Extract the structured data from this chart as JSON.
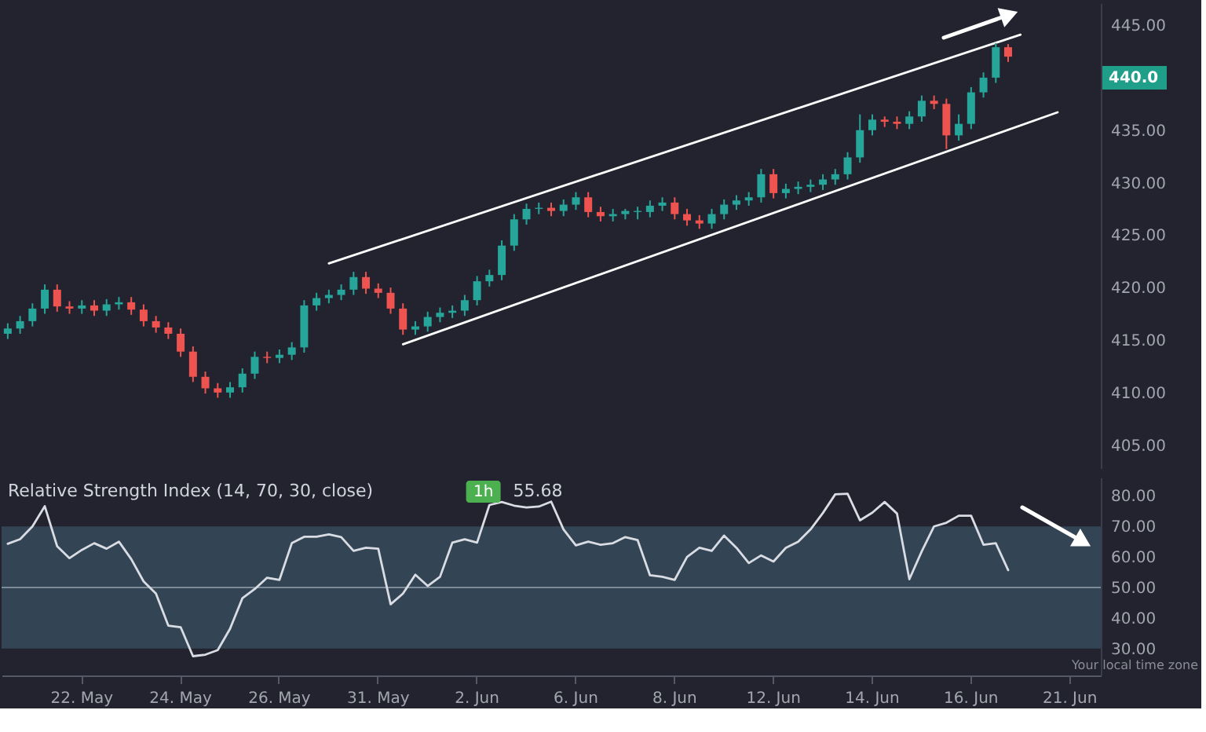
{
  "chart_data": [
    {
      "type": "candlestick",
      "categories": [
        null,
        null,
        null,
        null,
        null,
        null,
        null,
        null,
        null,
        null,
        null,
        null,
        null,
        null,
        null,
        null,
        null,
        null,
        null,
        null,
        null,
        null,
        null,
        null,
        null,
        null,
        null,
        null,
        null,
        null,
        null,
        null,
        null,
        null,
        null,
        null,
        null,
        null,
        null,
        null,
        null,
        null,
        null,
        null,
        null,
        null,
        null,
        null,
        null,
        null,
        null,
        null,
        null,
        null,
        null,
        null,
        null,
        null,
        null,
        null,
        null,
        null,
        null,
        null,
        null,
        null,
        null,
        null,
        null,
        null,
        null,
        null,
        null,
        null,
        null,
        null,
        null,
        null,
        null,
        null,
        null,
        null,
        null,
        null,
        null,
        null,
        null,
        null,
        null
      ],
      "ohlc": [
        [
          415.6,
          416.6,
          415.1,
          416.1
        ],
        [
          416.1,
          417.3,
          415.6,
          416.8
        ],
        [
          416.8,
          418.5,
          416.3,
          418.0
        ],
        [
          418.0,
          420.3,
          417.5,
          419.8
        ],
        [
          419.8,
          420.3,
          417.7,
          418.2
        ],
        [
          418.2,
          418.7,
          417.5,
          418.0
        ],
        [
          418.0,
          418.8,
          417.5,
          418.3
        ],
        [
          418.3,
          418.8,
          417.3,
          417.8
        ],
        [
          417.8,
          418.9,
          417.3,
          418.4
        ],
        [
          418.4,
          419.1,
          417.9,
          418.6
        ],
        [
          418.6,
          419.1,
          417.4,
          417.9
        ],
        [
          417.9,
          418.4,
          416.3,
          416.8
        ],
        [
          416.8,
          417.3,
          415.7,
          416.2
        ],
        [
          416.2,
          416.7,
          415.1,
          415.6
        ],
        [
          415.6,
          416.1,
          413.4,
          413.9
        ],
        [
          413.9,
          414.4,
          411.0,
          411.5
        ],
        [
          411.5,
          412.0,
          409.9,
          410.4
        ],
        [
          410.4,
          410.9,
          409.5,
          410.0
        ],
        [
          410.0,
          411.0,
          409.5,
          410.5
        ],
        [
          410.5,
          412.3,
          410.0,
          411.8
        ],
        [
          411.8,
          413.9,
          411.3,
          413.4
        ],
        [
          413.4,
          413.9,
          412.8,
          413.3
        ],
        [
          413.3,
          414.1,
          412.8,
          413.6
        ],
        [
          413.6,
          414.8,
          413.1,
          414.3
        ],
        [
          414.3,
          418.8,
          413.8,
          418.3
        ],
        [
          418.3,
          419.5,
          417.8,
          419.0
        ],
        [
          419.0,
          419.8,
          418.5,
          419.3
        ],
        [
          419.3,
          420.3,
          418.8,
          419.8
        ],
        [
          419.8,
          421.5,
          419.3,
          421.0
        ],
        [
          421.0,
          421.5,
          419.4,
          419.9
        ],
        [
          419.9,
          420.4,
          419.0,
          419.5
        ],
        [
          419.5,
          420.0,
          417.5,
          418.0
        ],
        [
          418.0,
          418.5,
          415.5,
          416.0
        ],
        [
          416.0,
          416.8,
          415.5,
          416.3
        ],
        [
          416.3,
          417.7,
          415.8,
          417.2
        ],
        [
          417.2,
          418.1,
          416.7,
          417.6
        ],
        [
          417.6,
          418.3,
          417.1,
          417.8
        ],
        [
          417.8,
          419.3,
          417.3,
          418.8
        ],
        [
          418.8,
          421.1,
          418.3,
          420.6
        ],
        [
          420.6,
          421.7,
          420.1,
          421.2
        ],
        [
          421.2,
          424.5,
          420.7,
          424.0
        ],
        [
          424.0,
          427.0,
          423.5,
          426.5
        ],
        [
          426.5,
          428.0,
          426.0,
          427.5
        ],
        [
          427.5,
          428.1,
          427.0,
          427.6
        ],
        [
          427.6,
          428.1,
          426.8,
          427.3
        ],
        [
          427.3,
          428.4,
          426.8,
          427.9
        ],
        [
          427.9,
          429.1,
          427.4,
          428.6
        ],
        [
          428.6,
          429.1,
          426.7,
          427.2
        ],
        [
          427.2,
          427.7,
          426.3,
          426.8
        ],
        [
          426.8,
          427.5,
          426.3,
          427.0
        ],
        [
          427.0,
          427.5,
          426.5,
          427.3
        ],
        [
          427.3,
          427.7,
          426.5,
          427.2
        ],
        [
          427.2,
          428.3,
          426.7,
          427.8
        ],
        [
          427.8,
          428.6,
          427.3,
          428.1
        ],
        [
          428.1,
          428.6,
          426.5,
          427.0
        ],
        [
          427.0,
          427.5,
          425.9,
          426.4
        ],
        [
          426.4,
          426.9,
          425.6,
          426.1
        ],
        [
          426.1,
          427.5,
          425.6,
          427.0
        ],
        [
          427.0,
          428.4,
          426.5,
          427.9
        ],
        [
          427.9,
          428.8,
          427.4,
          428.3
        ],
        [
          428.3,
          429.1,
          427.8,
          428.6
        ],
        [
          428.6,
          431.3,
          428.1,
          430.8
        ],
        [
          430.8,
          431.3,
          428.5,
          429.0
        ],
        [
          429.0,
          429.9,
          428.5,
          429.4
        ],
        [
          429.4,
          430.1,
          428.9,
          429.6
        ],
        [
          429.6,
          430.3,
          429.1,
          429.8
        ],
        [
          429.8,
          430.8,
          429.3,
          430.3
        ],
        [
          430.3,
          431.3,
          429.8,
          430.8
        ],
        [
          430.8,
          432.9,
          430.3,
          432.4
        ],
        [
          432.4,
          436.5,
          431.9,
          435.0
        ],
        [
          435.0,
          436.5,
          434.5,
          436.0
        ],
        [
          436.0,
          436.3,
          435.3,
          435.8
        ],
        [
          435.8,
          436.3,
          435.1,
          435.6
        ],
        [
          435.6,
          436.8,
          435.1,
          436.3
        ],
        [
          436.3,
          438.3,
          435.8,
          437.8
        ],
        [
          437.8,
          438.3,
          437.0,
          437.5
        ],
        [
          437.5,
          438.0,
          433.2,
          434.5
        ],
        [
          434.5,
          436.5,
          434.0,
          435.6
        ],
        [
          435.6,
          439.1,
          435.1,
          438.6
        ],
        [
          438.6,
          440.5,
          438.1,
          440.0
        ],
        [
          440.0,
          443.3,
          439.5,
          442.9
        ],
        [
          442.9,
          443.2,
          441.5,
          442.0
        ],
        null,
        null,
        null,
        null,
        null,
        null,
        null
      ],
      "colors": [
        "#26a69a",
        "#26a69a",
        "#26a69a",
        "#26a69a",
        "#ef5350",
        "#ef5350",
        "#26a69a",
        "#ef5350",
        "#26a69a",
        "#26a69a",
        "#ef5350",
        "#ef5350",
        "#ef5350",
        "#ef5350",
        "#ef5350",
        "#ef5350",
        "#ef5350",
        "#ef5350",
        "#26a69a",
        "#26a69a",
        "#26a69a",
        "#ef5350",
        "#26a69a",
        "#26a69a",
        "#26a69a",
        "#26a69a",
        "#26a69a",
        "#26a69a",
        "#26a69a",
        "#ef5350",
        "#ef5350",
        "#ef5350",
        "#ef5350",
        "#26a69a",
        "#26a69a",
        "#26a69a",
        "#26a69a",
        "#26a69a",
        "#26a69a",
        "#26a69a",
        "#26a69a",
        "#26a69a",
        "#26a69a",
        "#26a69a",
        "#ef5350",
        "#26a69a",
        "#26a69a",
        "#ef5350",
        "#ef5350",
        "#26a69a",
        "#26a69a",
        "#26a69a",
        "#26a69a",
        "#26a69a",
        "#ef5350",
        "#ef5350",
        "#ef5350",
        "#26a69a",
        "#26a69a",
        "#26a69a",
        "#26a69a",
        "#26a69a",
        "#ef5350",
        "#26a69a",
        "#26a69a",
        "#26a69a",
        "#26a69a",
        "#26a69a",
        "#26a69a",
        "#26a69a",
        "#26a69a",
        "#ef5350",
        "#ef5350",
        "#26a69a",
        "#26a69a",
        "#ef5350",
        "#ef5350",
        "#26a69a",
        "#26a69a",
        "#26a69a",
        "#26a69a",
        "#ef5350",
        null,
        null,
        null,
        null,
        null,
        null,
        null
      ],
      "series": [
        {
          "type": "line",
          "color": "#ffffff",
          "values": [
            null,
            null,
            null,
            null,
            null,
            null,
            null,
            null,
            null,
            null,
            null,
            null,
            null,
            null,
            null,
            null,
            null,
            null,
            null,
            null,
            null,
            null,
            null,
            null,
            null,
            null,
            422.3,
            null,
            null,
            null,
            null,
            null,
            null,
            null,
            null,
            null,
            null,
            null,
            null,
            null,
            null,
            null,
            null,
            null,
            null,
            null,
            null,
            null,
            null,
            null,
            null,
            null,
            null,
            null,
            null,
            null,
            null,
            null,
            null,
            null,
            null,
            null,
            null,
            null,
            null,
            null,
            null,
            null,
            null,
            null,
            null,
            null,
            null,
            null,
            null,
            null,
            null,
            null,
            null,
            null,
            null,
            null,
            444.1,
            null,
            null,
            null,
            null,
            null,
            null
          ]
        },
        {
          "type": "line",
          "color": "#ffffff",
          "values": [
            null,
            null,
            null,
            null,
            null,
            null,
            null,
            null,
            null,
            null,
            null,
            null,
            null,
            null,
            null,
            null,
            null,
            null,
            null,
            null,
            null,
            null,
            null,
            null,
            null,
            null,
            null,
            null,
            null,
            null,
            null,
            null,
            414.6,
            null,
            null,
            null,
            null,
            null,
            null,
            null,
            null,
            null,
            null,
            null,
            null,
            null,
            null,
            null,
            null,
            null,
            null,
            null,
            null,
            null,
            null,
            null,
            null,
            null,
            null,
            null,
            null,
            null,
            null,
            null,
            null,
            null,
            null,
            null,
            null,
            null,
            null,
            null,
            null,
            null,
            null,
            null,
            null,
            null,
            null,
            null,
            null,
            null,
            null,
            null,
            null,
            436.7,
            null,
            null,
            null
          ]
        }
      ],
      "ylim": [
        402.8,
        447.1
      ],
      "yticks": [
        {
          "value": 405,
          "label": "405.00"
        },
        {
          "value": 410,
          "label": "410.00"
        },
        {
          "value": 415,
          "label": "415.00"
        },
        {
          "value": 420,
          "label": "420.00"
        },
        {
          "value": 425,
          "label": "425.00"
        },
        {
          "value": 430,
          "label": "430.00"
        },
        {
          "value": 435,
          "label": "435.00"
        },
        {
          "value": 445,
          "label": "445.00"
        }
      ],
      "tick_labels": "y",
      "annotations": [
        {
          "text": "440.0",
          "y": 440
        }
      ]
    },
    {
      "type": "line",
      "title": "Relative Strength Index (14, 70, 30, close)",
      "categories": [
        null,
        null,
        null,
        null,
        null,
        null,
        "22. May",
        null,
        null,
        null,
        null,
        null,
        null,
        null,
        "24. May",
        null,
        null,
        null,
        null,
        null,
        null,
        null,
        "26. May",
        null,
        null,
        null,
        null,
        null,
        null,
        null,
        "31. May",
        null,
        null,
        null,
        null,
        null,
        null,
        null,
        "2. Jun",
        null,
        null,
        null,
        null,
        null,
        null,
        null,
        "6. Jun",
        null,
        null,
        null,
        null,
        null,
        null,
        null,
        "8. Jun",
        null,
        null,
        null,
        null,
        null,
        null,
        null,
        "12. Jun",
        null,
        null,
        null,
        null,
        null,
        null,
        null,
        "14. Jun",
        null,
        null,
        null,
        null,
        null,
        null,
        null,
        "16. Jun",
        null,
        null,
        null,
        null,
        null,
        null,
        null,
        "21. Jun",
        null,
        null
      ],
      "series": [
        {
          "color": "#d9dce3",
          "values": [
            64.3,
            65.8,
            70,
            76.6,
            63.5,
            59.6,
            62.3,
            64.5,
            62.7,
            65,
            59.3,
            52,
            48,
            37.5,
            37,
            27.5,
            28,
            29.5,
            36.5,
            46.5,
            49.5,
            53.2,
            52.5,
            64.5,
            66.6,
            66.6,
            67.4,
            66.5,
            62,
            63,
            62.7,
            44.5,
            48,
            54.2,
            50.5,
            53.5,
            64.7,
            65.8,
            64.7,
            77,
            78,
            76.8,
            76.2,
            76.5,
            78.1,
            69,
            63.8,
            65,
            64,
            64.5,
            66.5,
            65.5,
            54,
            53.5,
            52.5,
            60,
            63,
            62,
            67,
            63,
            58,
            60.5,
            58.5,
            63,
            65,
            69,
            74.4,
            80.5,
            80.7,
            72,
            74.5,
            78,
            74.2,
            52.7,
            61.8,
            70,
            71.2,
            73.5,
            73.5,
            64,
            64.5,
            55.68,
            null,
            null,
            null,
            null,
            null,
            null,
            null
          ]
        }
      ],
      "ylim": [
        21.2,
        86
      ],
      "yticks": [
        {
          "value": 30,
          "label": "30.00"
        },
        {
          "value": 40,
          "label": "40.00"
        },
        {
          "value": 50,
          "label": "50.00"
        },
        {
          "value": 60,
          "label": "60.00"
        },
        {
          "value": 70,
          "label": "70.00"
        },
        {
          "value": 80,
          "label": "80.00"
        }
      ],
      "bands": [
        {
          "axis": "y",
          "from": 30,
          "to": 70,
          "color": "#35495a"
        }
      ],
      "ref_lines": [
        {
          "axis": "y",
          "value": 50,
          "color": "#7d8a97"
        }
      ],
      "annotations": [
        "1h",
        "55.68",
        "Your local time zone"
      ]
    }
  ]
}
